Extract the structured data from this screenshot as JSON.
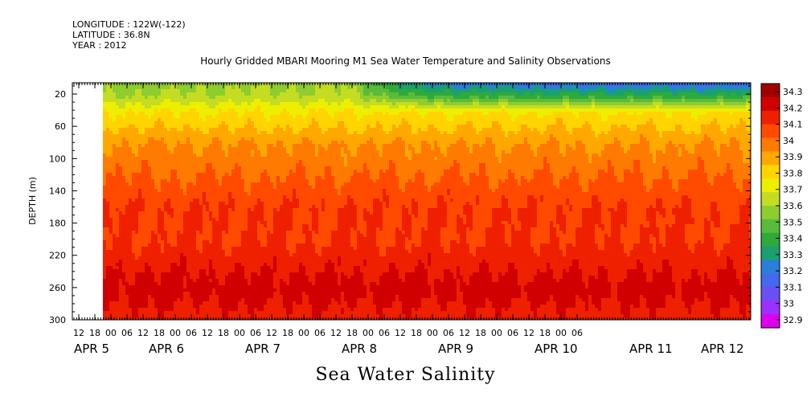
{
  "header": {
    "longitude": "LONGITUDE : 122W(-122)",
    "latitude": "LATITUDE : 36.8N",
    "year": "YEAR : 2012"
  },
  "chart_data": {
    "type": "heatmap",
    "title": "Hourly Gridded MBARI Mooring M1 Sea Water Temperature and Salinity Observations",
    "xlabel": "Sea Water Salinity",
    "ylabel": "DEPTH (m)",
    "y_ticks": [
      20,
      60,
      100,
      140,
      180,
      220,
      260,
      300
    ],
    "ylim": [
      300,
      6
    ],
    "hour_ticks": [
      "12",
      "18",
      "00",
      "06",
      "12",
      "18",
      "00",
      "06",
      "12",
      "18",
      "00",
      "06",
      "12",
      "18",
      "00",
      "06",
      "12",
      "18",
      "00",
      "06",
      "12",
      "18",
      "00",
      "06",
      "12",
      "18",
      "00",
      "06",
      "12",
      "18",
      "00",
      "06"
    ],
    "day_labels": [
      "APR  5",
      "APR  6",
      "APR  7",
      "APR  8",
      "APR  9",
      "APR 10",
      "APR 11",
      "APR 12"
    ],
    "data_start": "APR 5 18:00",
    "colorbar": {
      "levels": [
        32.9,
        33,
        33.1,
        33.2,
        33.3,
        33.4,
        33.5,
        33.6,
        33.7,
        33.8,
        33.9,
        34,
        34.1,
        34.2,
        34.3
      ],
      "labels": [
        "32.9",
        "33",
        "33.1",
        "33.2",
        "33.3",
        "33.4",
        "33.5",
        "33.6",
        "33.7",
        "33.8",
        "33.9",
        "34",
        "34.1",
        "34.2",
        "34.3"
      ],
      "colors": [
        "#dd00ee",
        "#9b30ff",
        "#6a50f0",
        "#4468ee",
        "#2a7fd8",
        "#1aa070",
        "#2eaa3a",
        "#5abb3a",
        "#8fcc30",
        "#c4dd22",
        "#eeee00",
        "#ffd400",
        "#ffa800",
        "#ff7a00",
        "#ff4a00",
        "#ee2000",
        "#d00000",
        "#a00000"
      ]
    },
    "profile_depths": [
      6,
      20,
      40,
      60,
      80,
      100,
      120,
      140,
      160,
      180,
      200,
      220,
      240,
      260,
      280,
      300
    ],
    "profile_values": [
      33.55,
      33.6,
      33.8,
      33.9,
      34.0,
      34.05,
      34.1,
      34.15,
      34.2,
      34.2,
      34.2,
      34.25,
      34.3,
      34.35,
      34.3,
      34.25
    ],
    "surface_trend": [
      {
        "time": "APR 5 18:00",
        "salinity": 33.55
      },
      {
        "time": "APR 9 12:00",
        "salinity": 33.6
      },
      {
        "time": "APR 10 12:00",
        "salinity": 33.2
      },
      {
        "time": "APR 11 06:00",
        "salinity": 33.15
      },
      {
        "time": "APR 12 12:00",
        "salinity": 33.1
      }
    ]
  }
}
